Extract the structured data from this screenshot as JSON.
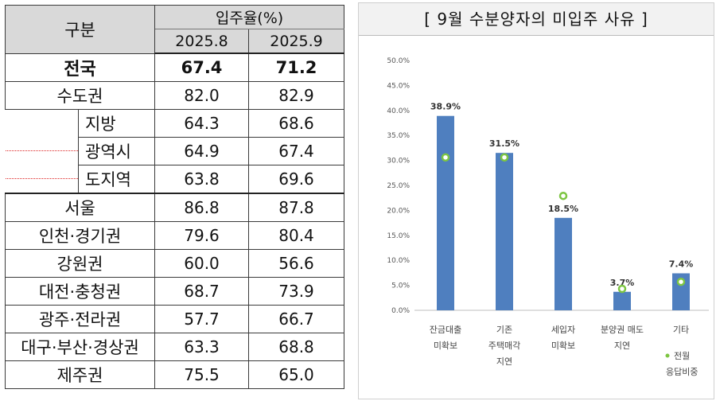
{
  "table": {
    "header": {
      "gubun": "구분",
      "rate_label": "입주율(%)",
      "periods": [
        "2025.8",
        "2025.9"
      ]
    },
    "rows": [
      {
        "label": "전국",
        "v1": "67.4",
        "v2": "71.2",
        "bold": true
      },
      {
        "label": "수도권",
        "v1": "82.0",
        "v2": "82.9"
      },
      {
        "label": "지방",
        "v1": "64.3",
        "v2": "68.6",
        "sub": true
      },
      {
        "label": "광역시",
        "v1": "64.9",
        "v2": "67.4",
        "sub": true
      },
      {
        "label": "도지역",
        "v1": "63.8",
        "v2": "69.6",
        "sub": true
      },
      {
        "label": "서울",
        "v1": "86.8",
        "v2": "87.8",
        "sep": true
      },
      {
        "label": "인천·경기권",
        "v1": "79.6",
        "v2": "80.4"
      },
      {
        "label": "강원권",
        "v1": "60.0",
        "v2": "56.6"
      },
      {
        "label": "대전·충청권",
        "v1": "68.7",
        "v2": "73.9"
      },
      {
        "label": "광주·전라권",
        "v1": "57.7",
        "v2": "66.7"
      },
      {
        "label": "대구·부산·경상권",
        "v1": "63.3",
        "v2": "68.8"
      },
      {
        "label": "제주권",
        "v1": "75.5",
        "v2": "65.0"
      }
    ]
  },
  "chart_title": "[ 9월 수분양자의 미입주 사유 ]",
  "chart_data": {
    "type": "bar",
    "title": "[ 9월 수분양자의 미입주 사유 ]",
    "categories": [
      [
        "잔금대출",
        "미확보"
      ],
      [
        "기존",
        "주택매각",
        "지연"
      ],
      [
        "세입자",
        "미확보"
      ],
      [
        "분양권 매도",
        "지연"
      ],
      [
        "기타"
      ]
    ],
    "series": [
      {
        "values": [
          38.9,
          31.5,
          18.5,
          3.7,
          7.4
        ],
        "labels": [
          "38.9%",
          "31.5%",
          "18.5%",
          "3.7%",
          "7.4%"
        ],
        "color": "#4f7fbf"
      },
      {
        "name": "전월 응답비중",
        "type": "scatter",
        "values": [
          30.6,
          30.6,
          22.9,
          4.3,
          5.7
        ],
        "color": "#7dc542"
      }
    ],
    "ylim": [
      0,
      50
    ],
    "yticks": [
      "0.0%",
      "5.0%",
      "10.0%",
      "15.0%",
      "20.0%",
      "25.0%",
      "30.0%",
      "35.0%",
      "40.0%",
      "45.0%",
      "50.0%"
    ],
    "legend": {
      "label_lines": [
        "전월",
        "응답비중"
      ],
      "position": "bottom-right"
    },
    "grid": false
  }
}
